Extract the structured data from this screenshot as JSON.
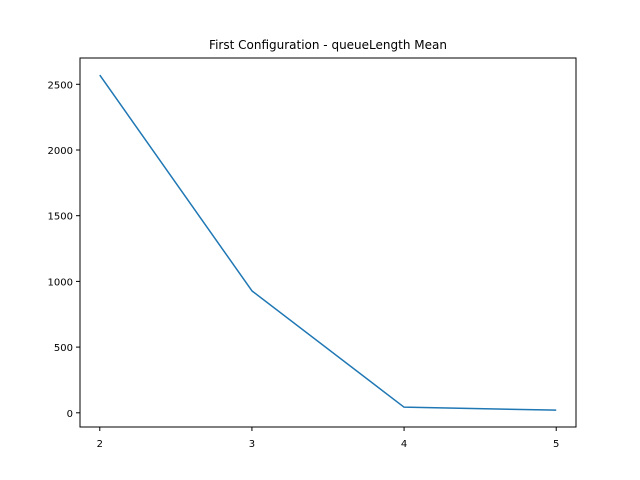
{
  "chart_data": {
    "type": "line",
    "title": "First Configuration - queueLength Mean",
    "xlabel": "",
    "ylabel": "",
    "x": [
      2,
      3,
      4,
      5
    ],
    "series": [
      {
        "values": [
          2570,
          928,
          43,
          20
        ],
        "color": "#1f77b4"
      }
    ],
    "xlim": [
      1.87,
      5.13
    ],
    "ylim": [
      -108,
      2700
    ],
    "xticks": [
      2,
      3,
      4,
      5
    ],
    "yticks": [
      0,
      500,
      1000,
      1500,
      2000,
      2500
    ],
    "grid": false,
    "legend": "none"
  }
}
